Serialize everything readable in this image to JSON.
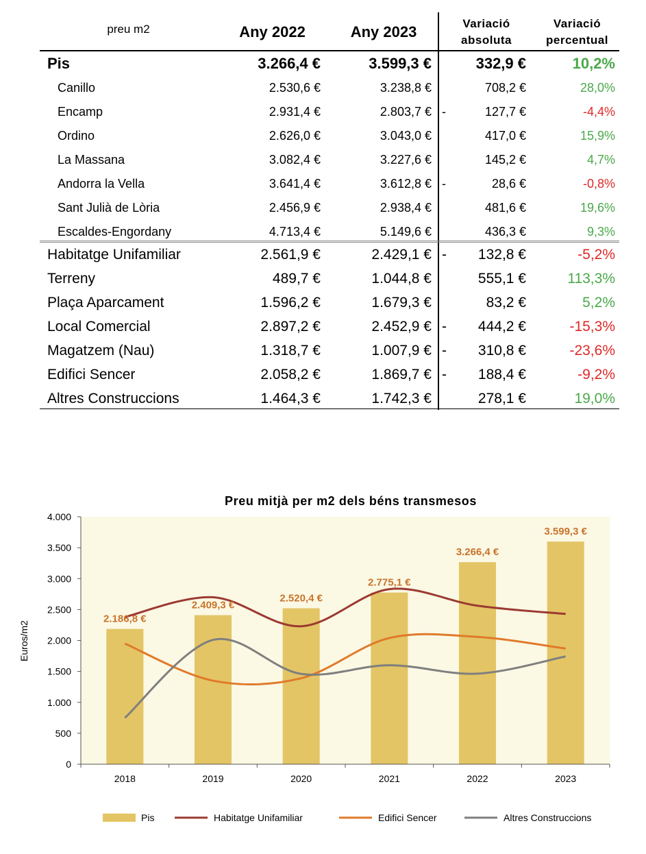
{
  "table": {
    "header": {
      "label": "preu m2",
      "col_2022": "Any 2022",
      "col_2023": "Any 2023",
      "var_abs_line1": "Variació",
      "var_abs_line2": "absoluta",
      "var_pct_line1": "Variació",
      "var_pct_line2": "percentual"
    },
    "pis": {
      "name": "Pis",
      "v2022": "3.266,4 €",
      "v2023": "3.599,3 €",
      "sign": "",
      "abs": "332,9 €",
      "pct": "10,2%",
      "trend": "pos"
    },
    "parishes": [
      {
        "name": "Canillo",
        "v2022": "2.530,6 €",
        "v2023": "3.238,8 €",
        "sign": "",
        "abs": "708,2 €",
        "pct": "28,0%",
        "trend": "pos"
      },
      {
        "name": "Encamp",
        "v2022": "2.931,4 €",
        "v2023": "2.803,7 €",
        "sign": "-",
        "abs": "127,7 €",
        "pct": "-4,4%",
        "trend": "neg"
      },
      {
        "name": "Ordino",
        "v2022": "2.626,0 €",
        "v2023": "3.043,0 €",
        "sign": "",
        "abs": "417,0 €",
        "pct": "15,9%",
        "trend": "pos"
      },
      {
        "name": "La Massana",
        "v2022": "3.082,4 €",
        "v2023": "3.227,6 €",
        "sign": "",
        "abs": "145,2 €",
        "pct": "4,7%",
        "trend": "pos"
      },
      {
        "name": "Andorra la Vella",
        "v2022": "3.641,4 €",
        "v2023": "3.612,8 €",
        "sign": "-",
        "abs": "28,6 €",
        "pct": "-0,8%",
        "trend": "neg"
      },
      {
        "name": "Sant Julià de Lòria",
        "v2022": "2.456,9 €",
        "v2023": "2.938,4 €",
        "sign": "",
        "abs": "481,6 €",
        "pct": "19,6%",
        "trend": "pos"
      },
      {
        "name": "Escaldes-Engordany",
        "v2022": "4.713,4 €",
        "v2023": "5.149,6 €",
        "sign": "",
        "abs": "436,3 €",
        "pct": "9,3%",
        "trend": "pos"
      }
    ],
    "types": [
      {
        "name": "Habitatge Unifamiliar",
        "v2022": "2.561,9 €",
        "v2023": "2.429,1 €",
        "sign": "-",
        "abs": "132,8 €",
        "pct": "-5,2%",
        "trend": "neg"
      },
      {
        "name": "Terreny",
        "v2022": "489,7 €",
        "v2023": "1.044,8 €",
        "sign": "",
        "abs": "555,1 €",
        "pct": "113,3%",
        "trend": "pos"
      },
      {
        "name": "Plaça Aparcament",
        "v2022": "1.596,2 €",
        "v2023": "1.679,3 €",
        "sign": "",
        "abs": "83,2 €",
        "pct": "5,2%",
        "trend": "pos"
      },
      {
        "name": "Local Comercial",
        "v2022": "2.897,2 €",
        "v2023": "2.452,9 €",
        "sign": "-",
        "abs": "444,2 €",
        "pct": "-15,3%",
        "trend": "neg"
      },
      {
        "name": "Magatzem (Nau)",
        "v2022": "1.318,7 €",
        "v2023": "1.007,9 €",
        "sign": "-",
        "abs": "310,8 €",
        "pct": "-23,6%",
        "trend": "neg"
      },
      {
        "name": "Edifici Sencer",
        "v2022": "2.058,2 €",
        "v2023": "1.869,7 €",
        "sign": "-",
        "abs": "188,4 €",
        "pct": "-9,2%",
        "trend": "neg"
      },
      {
        "name": "Altres Construccions",
        "v2022": "1.464,3 €",
        "v2023": "1.742,3 €",
        "sign": "",
        "abs": "278,1 €",
        "pct": "19,0%",
        "trend": "pos"
      }
    ]
  },
  "colors": {
    "positive": "#4aa84a",
    "negative": "#e02828",
    "bar": "#e3c565",
    "bar_label": "#c8742c",
    "plot_bg": "#fbf8e4",
    "habitatge": "#9b3a32",
    "edifici": "#e07a2a",
    "altres": "#7f7f7f"
  },
  "chart_data": {
    "type": "bar",
    "title": "Preu mitjà per m2 dels béns transmesos",
    "xlabel": "",
    "ylabel": "Euros/m2",
    "ylim": [
      0,
      4000
    ],
    "yticks": [
      0,
      500,
      1000,
      1500,
      2000,
      2500,
      3000,
      3500,
      4000
    ],
    "ytick_labels": [
      "0",
      "500",
      "1.000",
      "1.500",
      "2.000",
      "2.500",
      "3.000",
      "3.500",
      "4.000"
    ],
    "categories": [
      "2018",
      "2019",
      "2020",
      "2021",
      "2022",
      "2023"
    ],
    "bar_series": {
      "name": "Pis",
      "values": [
        2186.8,
        2409.3,
        2520.4,
        2775.1,
        3266.4,
        3599.3
      ],
      "labels": [
        "2.186,8 €",
        "2.409,3 €",
        "2.520,4 €",
        "2.775,1 €",
        "3.266,4 €",
        "3.599,3 €"
      ]
    },
    "line_series": [
      {
        "name": "Habitatge Unifamiliar",
        "values": [
          2380,
          2700,
          2230,
          2830,
          2562,
          2429
        ]
      },
      {
        "name": "Edifici Sencer",
        "values": [
          1950,
          1350,
          1390,
          2040,
          2058,
          1870
        ]
      },
      {
        "name": "Altres Construccions",
        "values": [
          750,
          2010,
          1460,
          1600,
          1464,
          1742
        ]
      }
    ],
    "legend_position": "bottom",
    "grid": false
  }
}
